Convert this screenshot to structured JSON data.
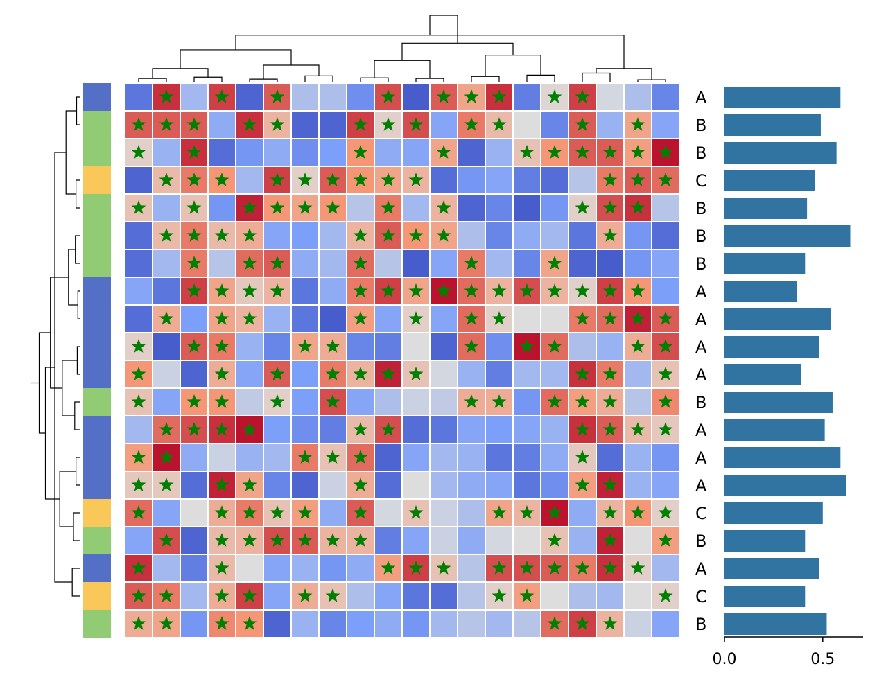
{
  "chart_data": {
    "type": "heatmap",
    "title": "",
    "n_rows": 20,
    "n_cols": 20,
    "cmap": "coolwarm",
    "vlim": [
      -1,
      1
    ],
    "row_groups": [
      "A",
      "B",
      "B",
      "C",
      "B",
      "B",
      "B",
      "A",
      "A",
      "A",
      "A",
      "B",
      "A",
      "A",
      "A",
      "C",
      "B",
      "A",
      "C",
      "B"
    ],
    "group_colors": {
      "A": "#5470c6",
      "B": "#91cc75",
      "C": "#fac858"
    },
    "star_color": "#008000",
    "matrix": [
      [
        -0.75,
        0.85,
        -0.3,
        0.8,
        -0.85,
        0.7,
        -0.25,
        -0.25,
        -0.6,
        0.75,
        -0.9,
        0.7,
        0.4,
        0.85,
        -0.7,
        0.05,
        0.8,
        -0.05,
        -0.25,
        -0.65
      ],
      [
        0.7,
        0.7,
        0.7,
        -0.4,
        0.85,
        0.3,
        -0.85,
        -0.85,
        0.8,
        0.1,
        0.75,
        -0.45,
        0.6,
        0.25,
        0.0,
        -0.65,
        0.7,
        -0.35,
        0.4,
        -0.45
      ],
      [
        0.1,
        -0.35,
        0.85,
        -0.8,
        -0.55,
        -0.4,
        -0.6,
        -0.5,
        0.5,
        -0.4,
        -0.45,
        0.4,
        -0.85,
        -0.35,
        0.2,
        0.5,
        0.7,
        0.7,
        0.45,
        0.95
      ],
      [
        -0.85,
        0.25,
        0.6,
        0.5,
        -0.3,
        0.8,
        0.1,
        0.7,
        0.5,
        0.4,
        0.3,
        -0.8,
        -0.55,
        -0.45,
        -0.7,
        -0.8,
        -0.2,
        0.6,
        0.7,
        0.65
      ],
      [
        0.2,
        -0.35,
        0.2,
        -0.55,
        0.9,
        0.5,
        0.4,
        0.5,
        -0.2,
        0.6,
        -0.3,
        0.3,
        -0.85,
        -0.65,
        -0.9,
        -0.55,
        0.1,
        0.75,
        0.85,
        -0.2
      ],
      [
        -0.8,
        0.25,
        0.6,
        0.25,
        0.35,
        -0.45,
        -0.5,
        -0.3,
        0.3,
        0.7,
        0.5,
        0.4,
        -0.25,
        -0.65,
        -0.4,
        -0.3,
        -0.75,
        0.35,
        -0.55,
        -0.8
      ],
      [
        -0.8,
        -0.3,
        0.6,
        -0.2,
        0.65,
        0.7,
        -0.4,
        -0.3,
        0.65,
        -0.2,
        -0.9,
        -0.45,
        0.6,
        -0.3,
        -0.65,
        0.4,
        -0.85,
        -0.9,
        -0.55,
        -0.45
      ],
      [
        -0.45,
        -0.75,
        0.8,
        0.4,
        0.15,
        0.3,
        -0.75,
        -0.4,
        0.6,
        0.8,
        0.4,
        0.95,
        0.65,
        0.3,
        0.75,
        0.3,
        0.1,
        0.8,
        0.5,
        -0.5
      ],
      [
        -0.8,
        0.35,
        -0.5,
        0.4,
        0.3,
        -0.35,
        -0.75,
        -0.9,
        0.45,
        -0.45,
        0.1,
        -0.45,
        0.65,
        0.1,
        0.0,
        0.0,
        0.6,
        0.65,
        0.9,
        0.7
      ],
      [
        0.1,
        -0.9,
        0.7,
        0.6,
        -0.35,
        -0.65,
        0.4,
        0.35,
        -0.65,
        -0.7,
        0.0,
        -0.85,
        0.65,
        -0.6,
        0.95,
        0.65,
        -0.25,
        -0.35,
        0.35,
        0.75
      ],
      [
        0.5,
        -0.1,
        -0.85,
        0.35,
        -0.45,
        0.7,
        -0.5,
        0.6,
        0.3,
        0.9,
        0.2,
        -0.05,
        -0.35,
        -0.7,
        -0.3,
        -0.3,
        0.85,
        0.6,
        -0.3,
        0.2
      ],
      [
        0.2,
        -0.45,
        0.5,
        0.5,
        -0.15,
        0.1,
        -0.5,
        0.75,
        -0.45,
        -0.25,
        -0.1,
        -0.15,
        0.35,
        0.35,
        -0.55,
        0.65,
        0.45,
        0.35,
        -0.2,
        0.55
      ],
      [
        -0.3,
        0.65,
        0.75,
        0.85,
        0.95,
        -0.5,
        -0.6,
        -0.7,
        0.25,
        0.75,
        -0.8,
        -0.75,
        -0.45,
        -0.5,
        -0.45,
        -0.35,
        0.85,
        0.7,
        0.25,
        0.15
      ],
      [
        0.45,
        0.95,
        -0.4,
        -0.1,
        -0.35,
        -0.3,
        0.6,
        0.2,
        0.65,
        -0.85,
        -0.45,
        -0.3,
        -0.35,
        -0.75,
        -0.7,
        -0.4,
        0.15,
        -0.8,
        -0.35,
        -0.55
      ],
      [
        0.15,
        0.15,
        -0.8,
        0.9,
        0.4,
        -0.65,
        -0.85,
        -0.1,
        0.35,
        -0.8,
        0.0,
        -0.3,
        -0.4,
        -0.45,
        -0.75,
        -0.6,
        0.45,
        0.9,
        -0.35,
        -0.45
      ],
      [
        0.65,
        -0.45,
        0.0,
        0.35,
        0.6,
        0.2,
        0.45,
        -0.4,
        0.7,
        -0.05,
        0.2,
        -0.1,
        -0.25,
        0.4,
        0.3,
        0.95,
        -0.4,
        0.3,
        0.5,
        0.1
      ],
      [
        -0.45,
        0.75,
        -0.85,
        0.25,
        0.3,
        0.75,
        0.7,
        0.3,
        0.3,
        -0.7,
        -0.45,
        -0.1,
        -0.4,
        -0.05,
        0.0,
        0.2,
        -0.35,
        0.9,
        0.0,
        0.45
      ],
      [
        0.85,
        -0.3,
        -0.7,
        0.25,
        0.0,
        -0.45,
        -0.35,
        -0.55,
        -0.4,
        0.45,
        0.8,
        0.2,
        -0.2,
        0.75,
        0.75,
        0.7,
        0.6,
        0.85,
        0.1,
        -0.3
      ],
      [
        0.7,
        0.6,
        -0.3,
        0.35,
        0.8,
        -0.45,
        0.35,
        0.2,
        -0.25,
        -0.45,
        -0.75,
        -0.8,
        -0.2,
        0.1,
        0.45,
        0.0,
        -0.25,
        -0.3,
        0.0,
        0.1
      ],
      [
        0.35,
        0.4,
        -0.55,
        0.55,
        0.5,
        -0.85,
        -0.35,
        -0.65,
        -0.5,
        -0.4,
        -0.55,
        -0.3,
        -0.2,
        -0.3,
        -0.2,
        0.65,
        0.8,
        0.3,
        -0.1,
        -0.45
      ]
    ],
    "stars": [
      [
        0,
        1,
        0,
        1,
        0,
        1,
        0,
        0,
        0,
        1,
        0,
        1,
        1,
        1,
        0,
        1,
        1,
        0,
        0,
        0
      ],
      [
        1,
        1,
        1,
        0,
        1,
        1,
        0,
        0,
        1,
        1,
        1,
        0,
        1,
        1,
        0,
        0,
        1,
        0,
        1,
        0
      ],
      [
        1,
        0,
        1,
        0,
        0,
        0,
        0,
        0,
        1,
        0,
        0,
        1,
        0,
        0,
        1,
        1,
        1,
        1,
        1,
        1
      ],
      [
        0,
        1,
        1,
        1,
        0,
        1,
        1,
        1,
        1,
        1,
        1,
        0,
        0,
        0,
        0,
        0,
        0,
        1,
        1,
        1
      ],
      [
        1,
        0,
        1,
        0,
        1,
        1,
        1,
        1,
        0,
        1,
        0,
        1,
        0,
        0,
        0,
        0,
        1,
        1,
        1,
        0
      ],
      [
        0,
        1,
        1,
        1,
        1,
        0,
        0,
        0,
        1,
        1,
        1,
        1,
        0,
        0,
        0,
        0,
        0,
        1,
        0,
        0
      ],
      [
        0,
        0,
        1,
        0,
        1,
        1,
        0,
        0,
        1,
        0,
        0,
        0,
        1,
        0,
        0,
        1,
        0,
        0,
        0,
        0
      ],
      [
        0,
        0,
        1,
        1,
        1,
        1,
        0,
        0,
        1,
        1,
        1,
        1,
        1,
        1,
        1,
        1,
        1,
        1,
        1,
        0
      ],
      [
        0,
        1,
        0,
        1,
        1,
        0,
        0,
        0,
        1,
        0,
        1,
        0,
        1,
        1,
        0,
        0,
        1,
        1,
        1,
        1
      ],
      [
        1,
        0,
        1,
        1,
        0,
        0,
        1,
        1,
        0,
        0,
        0,
        0,
        1,
        0,
        1,
        1,
        0,
        0,
        1,
        1
      ],
      [
        1,
        0,
        0,
        1,
        0,
        1,
        0,
        1,
        1,
        1,
        1,
        0,
        0,
        0,
        0,
        0,
        1,
        1,
        0,
        1
      ],
      [
        1,
        0,
        1,
        1,
        0,
        1,
        0,
        1,
        0,
        0,
        0,
        0,
        1,
        1,
        0,
        1,
        1,
        1,
        0,
        1
      ],
      [
        0,
        1,
        1,
        1,
        1,
        0,
        0,
        0,
        1,
        1,
        0,
        0,
        0,
        0,
        0,
        0,
        1,
        1,
        1,
        1
      ],
      [
        1,
        1,
        0,
        0,
        0,
        0,
        1,
        1,
        1,
        0,
        0,
        0,
        0,
        0,
        0,
        0,
        1,
        0,
        0,
        0
      ],
      [
        1,
        1,
        0,
        1,
        1,
        0,
        0,
        0,
        1,
        0,
        0,
        0,
        0,
        0,
        0,
        0,
        1,
        1,
        0,
        0
      ],
      [
        1,
        0,
        0,
        1,
        1,
        1,
        1,
        0,
        1,
        0,
        1,
        0,
        0,
        1,
        1,
        1,
        0,
        1,
        1,
        1
      ],
      [
        0,
        1,
        0,
        1,
        1,
        1,
        1,
        1,
        1,
        0,
        0,
        0,
        0,
        0,
        0,
        1,
        0,
        1,
        0,
        1
      ],
      [
        1,
        0,
        0,
        1,
        0,
        0,
        0,
        0,
        0,
        1,
        1,
        1,
        0,
        1,
        1,
        1,
        1,
        1,
        1,
        0
      ],
      [
        1,
        1,
        0,
        1,
        1,
        0,
        1,
        1,
        0,
        0,
        0,
        0,
        0,
        1,
        1,
        0,
        0,
        0,
        0,
        1
      ],
      [
        1,
        1,
        0,
        1,
        1,
        0,
        0,
        0,
        0,
        0,
        0,
        0,
        0,
        0,
        0,
        1,
        1,
        1,
        0,
        0
      ]
    ],
    "bar_values": [
      0.59,
      0.49,
      0.57,
      0.46,
      0.42,
      0.64,
      0.41,
      0.37,
      0.54,
      0.48,
      0.39,
      0.55,
      0.51,
      0.59,
      0.62,
      0.5,
      0.41,
      0.48,
      0.41,
      0.52
    ],
    "bar_color": "#3274a1",
    "bar_xlim": [
      0,
      0.67
    ],
    "bar_xticks": [
      "0.0",
      "0.5"
    ],
    "bar_xtick_values": [
      0,
      0.5
    ],
    "row_dendrogram_links": [
      [
        0,
        1,
        0.05
      ],
      [
        3,
        4,
        0.06
      ],
      [
        5,
        6,
        0.07
      ],
      [
        7,
        8,
        0.03
      ],
      [
        9,
        10,
        0.04
      ],
      [
        11,
        12,
        0.08
      ],
      [
        13,
        14,
        0.06
      ],
      [
        15,
        16,
        0.1
      ],
      [
        17,
        18,
        0.12
      ],
      [
        20,
        21,
        0.22
      ],
      [
        22,
        23,
        0.18
      ],
      [
        24,
        25,
        0.28
      ],
      [
        26,
        27,
        0.32
      ],
      [
        28,
        29,
        0.4
      ],
      [
        30,
        31,
        0.47
      ],
      [
        32,
        33,
        0.55
      ],
      [
        34,
        35,
        0.65
      ],
      [
        36,
        37,
        0.78
      ],
      [
        38,
        39,
        1.0
      ]
    ],
    "col_dendrogram_links": [
      [
        0,
        1,
        0.05
      ],
      [
        2,
        3,
        0.07
      ],
      [
        4,
        5,
        0.04
      ],
      [
        6,
        7,
        0.09
      ],
      [
        8,
        9,
        0.06
      ],
      [
        10,
        11,
        0.05
      ],
      [
        12,
        13,
        0.08
      ],
      [
        14,
        15,
        0.1
      ],
      [
        16,
        17,
        0.13
      ],
      [
        18,
        19,
        0.03
      ],
      [
        20,
        21,
        0.2
      ],
      [
        22,
        23,
        0.25
      ],
      [
        24,
        25,
        0.32
      ],
      [
        26,
        27,
        0.4
      ],
      [
        28,
        29,
        0.2
      ],
      [
        30,
        31,
        0.48
      ],
      [
        32,
        33,
        0.58
      ],
      [
        34,
        35,
        0.7
      ],
      [
        36,
        37,
        1.0
      ]
    ]
  }
}
